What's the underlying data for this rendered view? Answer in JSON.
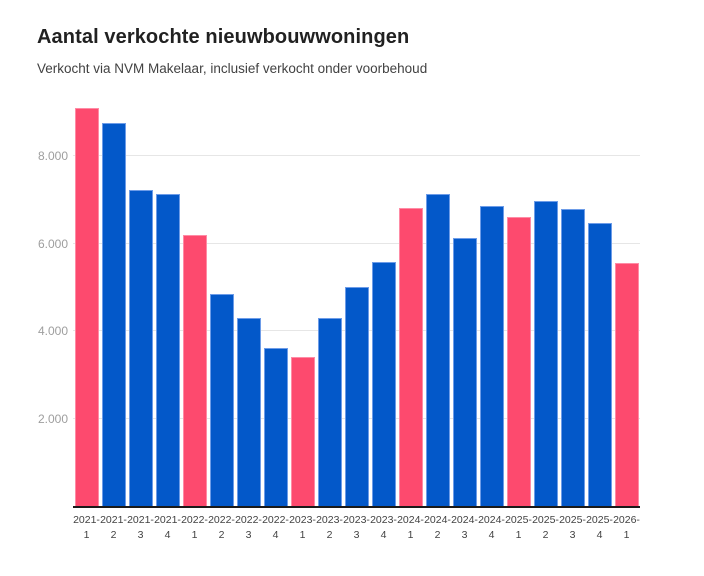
{
  "chart_data": {
    "type": "bar",
    "title": "Aantal verkochte nieuwbouwwoningen",
    "subtitle": "Verkocht via NVM Makelaar, inclusief verkocht onder voorbehoud",
    "xlabel": "",
    "ylabel": "",
    "categories": [
      "2021-1",
      "2021-2",
      "2021-3",
      "2021-4",
      "2022-1",
      "2022-2",
      "2022-3",
      "2022-4",
      "2023-1",
      "2023-2",
      "2023-3",
      "2023-4",
      "2024-1",
      "2024-2",
      "2024-3",
      "2024-4",
      "2025-1",
      "2025-2",
      "2025-3",
      "2025-4",
      "2026-1"
    ],
    "values": [
      9100,
      8750,
      7230,
      7130,
      6190,
      4850,
      4300,
      3610,
      3410,
      4300,
      5000,
      5570,
      6810,
      7130,
      6120,
      6850,
      6600,
      6970,
      6800,
      6460,
      5550
    ],
    "highlighted_categories": [
      "2021-1",
      "2022-1",
      "2023-1",
      "2024-1",
      "2025-1",
      "2026-1"
    ],
    "yticks": [
      2000,
      4000,
      6000,
      8000
    ],
    "ytick_labels": [
      "2.000",
      "4.000",
      "6.000",
      "8.000"
    ],
    "ylim": [
      0,
      9280
    ],
    "grid": true,
    "legend": false,
    "colors": {
      "bar_default": "#0358c9",
      "bar_default_edge": "#6d9ce8",
      "bar_highlight": "#fd4a6e",
      "bar_highlight_edge": "#ff8ba5",
      "gridline": "#e6e6e6",
      "axis_line": "#1a1a1a",
      "ytick_text": "#9e9e9e",
      "xtick_text": "#424242",
      "title_text": "#212121",
      "subtitle_text": "#424242"
    }
  }
}
